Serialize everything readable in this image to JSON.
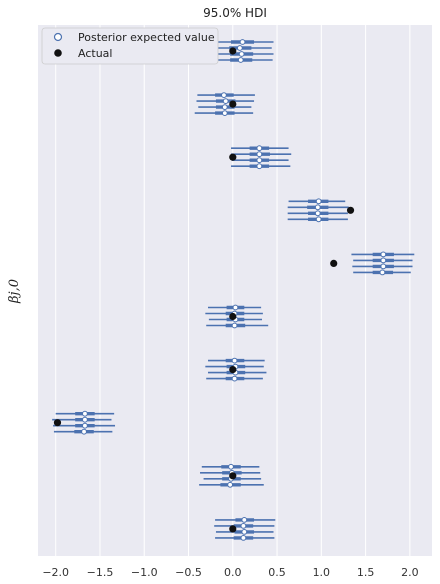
{
  "chart_data": {
    "type": "forest",
    "title": "95.0% HDI",
    "xlabel": "",
    "ylabel": "β_{j,0}",
    "ylabel_display": "βj,0",
    "xlim": [
      -2.2,
      2.25
    ],
    "xticks": [
      -2.0,
      -1.5,
      -1.0,
      -0.5,
      0.0,
      0.5,
      1.0,
      1.5,
      2.0
    ],
    "xtick_labels": [
      "−2.0",
      "−1.5",
      "−1.0",
      "−0.5",
      "0.0",
      "0.5",
      "1.0",
      "1.5",
      "2.0"
    ],
    "grid": true,
    "legend": {
      "placement": "top-left",
      "entries": [
        {
          "label": "Posterior expected value",
          "marker": "hollow-circle",
          "color": "#4c72b0"
        },
        {
          "label": "Actual",
          "marker": "filled-circle",
          "color": "#111111"
        }
      ]
    },
    "colors": {
      "interval": "#4c72b0",
      "actual": "#111111",
      "background": "#eaeaf2"
    },
    "groups": [
      {
        "actual": 0.0,
        "chains": [
          {
            "mean": 0.11,
            "hdi": [
              -0.25,
              0.46
            ],
            "iqr": [
              -0.02,
              0.24
            ]
          },
          {
            "mean": 0.08,
            "hdi": [
              -0.28,
              0.44
            ],
            "iqr": [
              -0.04,
              0.21
            ]
          },
          {
            "mean": 0.1,
            "hdi": [
              -0.27,
              0.46
            ],
            "iqr": [
              -0.03,
              0.23
            ]
          },
          {
            "mean": 0.09,
            "hdi": [
              -0.25,
              0.45
            ],
            "iqr": [
              -0.03,
              0.22
            ]
          }
        ]
      },
      {
        "actual": 0.0,
        "chains": [
          {
            "mean": -0.1,
            "hdi": [
              -0.4,
              0.25
            ],
            "iqr": [
              -0.2,
              0.01
            ]
          },
          {
            "mean": -0.08,
            "hdi": [
              -0.41,
              0.24
            ],
            "iqr": [
              -0.19,
              0.03
            ]
          },
          {
            "mean": -0.09,
            "hdi": [
              -0.39,
              0.21
            ],
            "iqr": [
              -0.19,
              0.02
            ]
          },
          {
            "mean": -0.09,
            "hdi": [
              -0.43,
              0.23
            ],
            "iqr": [
              -0.2,
              0.02
            ]
          }
        ]
      },
      {
        "actual": 0.0,
        "chains": [
          {
            "mean": 0.3,
            "hdi": [
              -0.02,
              0.63
            ],
            "iqr": [
              0.19,
              0.41
            ]
          },
          {
            "mean": 0.3,
            "hdi": [
              -0.02,
              0.66
            ],
            "iqr": [
              0.19,
              0.42
            ]
          },
          {
            "mean": 0.3,
            "hdi": [
              -0.01,
              0.63
            ],
            "iqr": [
              0.19,
              0.41
            ]
          },
          {
            "mean": 0.3,
            "hdi": [
              -0.02,
              0.65
            ],
            "iqr": [
              0.19,
              0.41
            ]
          }
        ]
      },
      {
        "actual": 1.33,
        "chains": [
          {
            "mean": 0.97,
            "hdi": [
              0.63,
              1.27
            ],
            "iqr": [
              0.85,
              1.08
            ]
          },
          {
            "mean": 0.96,
            "hdi": [
              0.62,
              1.31
            ],
            "iqr": [
              0.84,
              1.08
            ]
          },
          {
            "mean": 0.96,
            "hdi": [
              0.62,
              1.3
            ],
            "iqr": [
              0.85,
              1.08
            ]
          },
          {
            "mean": 0.97,
            "hdi": [
              0.62,
              1.3
            ],
            "iqr": [
              0.85,
              1.08
            ]
          }
        ]
      },
      {
        "actual": 1.14,
        "chains": [
          {
            "mean": 1.7,
            "hdi": [
              1.34,
              2.05
            ],
            "iqr": [
              1.58,
              1.82
            ]
          },
          {
            "mean": 1.7,
            "hdi": [
              1.36,
              2.03
            ],
            "iqr": [
              1.58,
              1.82
            ]
          },
          {
            "mean": 1.7,
            "hdi": [
              1.35,
              2.03
            ],
            "iqr": [
              1.58,
              1.82
            ]
          },
          {
            "mean": 1.69,
            "hdi": [
              1.36,
              2.01
            ],
            "iqr": [
              1.58,
              1.81
            ]
          }
        ]
      },
      {
        "actual": 0.0,
        "chains": [
          {
            "mean": 0.03,
            "hdi": [
              -0.28,
              0.32
            ],
            "iqr": [
              -0.07,
              0.13
            ]
          },
          {
            "mean": 0.02,
            "hdi": [
              -0.31,
              0.34
            ],
            "iqr": [
              -0.08,
              0.13
            ]
          },
          {
            "mean": 0.03,
            "hdi": [
              -0.27,
              0.33
            ],
            "iqr": [
              -0.07,
              0.13
            ]
          },
          {
            "mean": 0.02,
            "hdi": [
              -0.3,
              0.4
            ],
            "iqr": [
              -0.08,
              0.14
            ]
          }
        ]
      },
      {
        "actual": 0.0,
        "chains": [
          {
            "mean": 0.02,
            "hdi": [
              -0.28,
              0.36
            ],
            "iqr": [
              -0.08,
              0.13
            ]
          },
          {
            "mean": 0.03,
            "hdi": [
              -0.31,
              0.35
            ],
            "iqr": [
              -0.07,
              0.14
            ]
          },
          {
            "mean": 0.03,
            "hdi": [
              -0.28,
              0.38
            ],
            "iqr": [
              -0.07,
              0.14
            ]
          },
          {
            "mean": 0.02,
            "hdi": [
              -0.3,
              0.34
            ],
            "iqr": [
              -0.08,
              0.13
            ]
          }
        ]
      },
      {
        "actual": -1.98,
        "chains": [
          {
            "mean": -1.67,
            "hdi": [
              -2.0,
              -1.34
            ],
            "iqr": [
              -1.78,
              -1.56
            ]
          },
          {
            "mean": -1.67,
            "hdi": [
              -2.04,
              -1.37
            ],
            "iqr": [
              -1.78,
              -1.56
            ]
          },
          {
            "mean": -1.67,
            "hdi": [
              -2.03,
              -1.33
            ],
            "iqr": [
              -1.78,
              -1.56
            ]
          },
          {
            "mean": -1.68,
            "hdi": [
              -2.02,
              -1.36
            ],
            "iqr": [
              -1.79,
              -1.57
            ]
          }
        ]
      },
      {
        "actual": 0.0,
        "chains": [
          {
            "mean": -0.02,
            "hdi": [
              -0.35,
              0.3
            ],
            "iqr": [
              -0.13,
              0.09
            ]
          },
          {
            "mean": -0.01,
            "hdi": [
              -0.37,
              0.31
            ],
            "iqr": [
              -0.12,
              0.1
            ]
          },
          {
            "mean": -0.02,
            "hdi": [
              -0.33,
              0.32
            ],
            "iqr": [
              -0.12,
              0.09
            ]
          },
          {
            "mean": -0.03,
            "hdi": [
              -0.38,
              0.35
            ],
            "iqr": [
              -0.14,
              0.09
            ]
          }
        ]
      },
      {
        "actual": 0.0,
        "chains": [
          {
            "mean": 0.13,
            "hdi": [
              -0.2,
              0.48
            ],
            "iqr": [
              0.03,
              0.24
            ]
          },
          {
            "mean": 0.12,
            "hdi": [
              -0.21,
              0.47
            ],
            "iqr": [
              0.01,
              0.23
            ]
          },
          {
            "mean": 0.13,
            "hdi": [
              -0.19,
              0.46
            ],
            "iqr": [
              0.02,
              0.24
            ]
          },
          {
            "mean": 0.12,
            "hdi": [
              -0.2,
              0.47
            ],
            "iqr": [
              0.01,
              0.23
            ]
          }
        ]
      }
    ]
  }
}
